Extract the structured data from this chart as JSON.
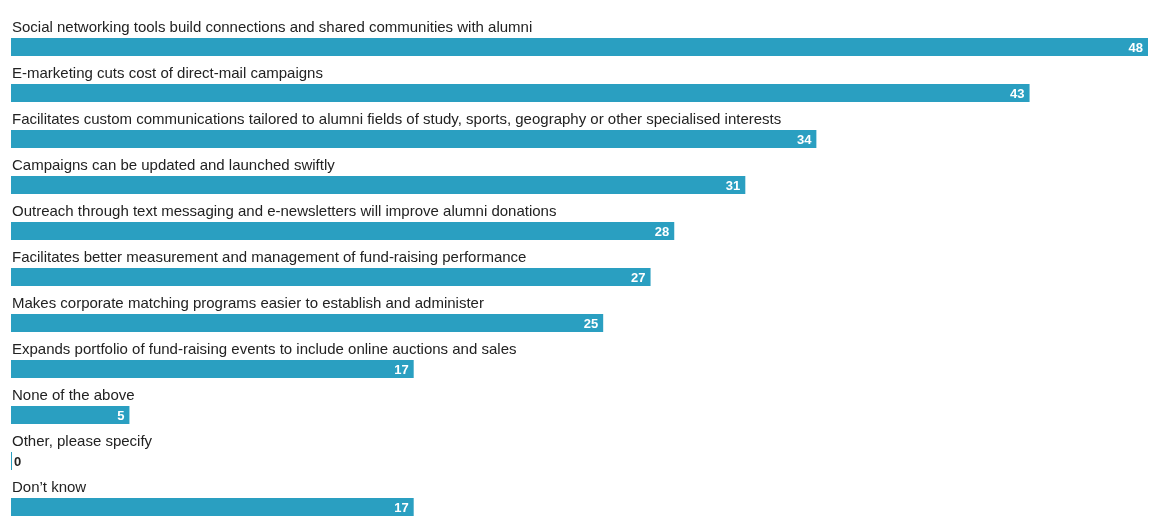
{
  "chart_data": {
    "type": "bar",
    "orientation": "horizontal",
    "categories": [
      "Social networking tools build connections and shared communities with alumni",
      "E-marketing cuts cost of direct-mail campaigns",
      "Facilitates custom communications tailored to alumni fields of study, sports, geography or other specialised interests",
      "Campaigns can be updated and launched swiftly",
      "Outreach through text messaging and e-newsletters will improve alumni donations",
      "Facilitates better measurement and management of fund-raising performance",
      "Makes corporate matching programs easier to establish and administer",
      "Expands portfolio of fund-raising events to include online auctions and sales",
      "None of the above",
      "Other, please specify",
      "Don’t know"
    ],
    "values": [
      48,
      43,
      34,
      31,
      28,
      27,
      25,
      17,
      5,
      0,
      17
    ],
    "color": "#2a9fc1",
    "data_labels": true
  }
}
